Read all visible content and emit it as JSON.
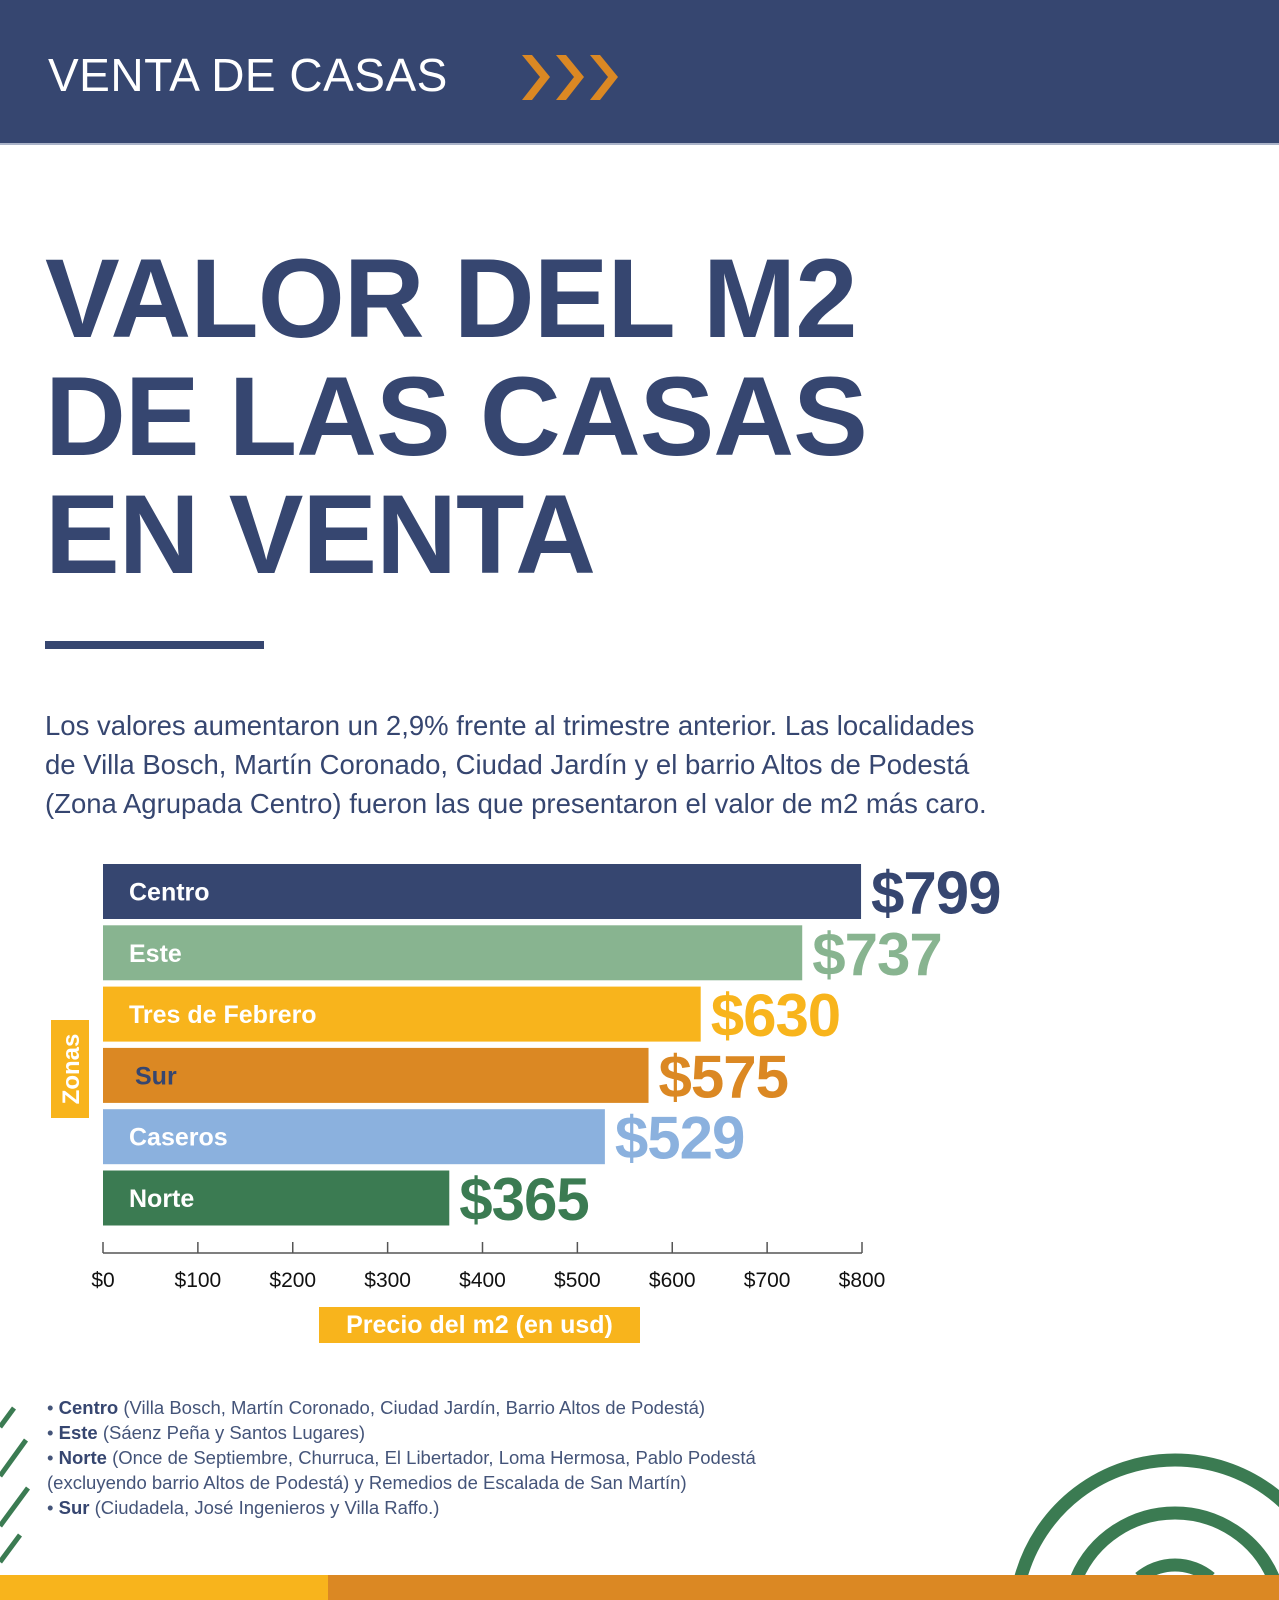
{
  "header": {
    "title": "VENTA DE CASAS",
    "icon": "triple-chevron-right"
  },
  "title_lines": [
    "VALOR DEL M2",
    "DE LAS CASAS",
    "EN VENTA"
  ],
  "intro_lines": [
    "Los valores aumentaron un 2,9% frente al trimestre anterior. Las localidades",
    "de Villa Bosch, Martín Coronado, Ciudad Jardín y el barrio Altos de Podestá",
    "(Zona Agrupada Centro) fueron las que presentaron el valor de m2 más caro."
  ],
  "chart_data": {
    "type": "bar",
    "orientation": "horizontal",
    "categories": [
      "Centro",
      "Este",
      "Tres de Febrero",
      "Sur",
      "Caseros",
      "Norte"
    ],
    "values": [
      799,
      737,
      630,
      575,
      529,
      365
    ],
    "value_labels": [
      "$799",
      "$737",
      "$630",
      "$575",
      "$529",
      "$365"
    ],
    "colors": [
      "#364670",
      "#88b490",
      "#f8b41c",
      "#db8823",
      "#8bb1de",
      "#3b7b52"
    ],
    "category_label_colors": [
      "#ffffff",
      "#ffffff",
      "#ffffff",
      "#364670",
      "#ffffff",
      "#ffffff"
    ],
    "xlabel": "Precio del m2 (en usd)",
    "ylabel": "Zonas",
    "xlim": [
      0,
      800
    ],
    "x_ticks": [
      0,
      100,
      200,
      300,
      400,
      500,
      600,
      700,
      800
    ],
    "x_tick_labels": [
      "$0",
      "$100",
      "$200",
      "$300",
      "$400",
      "$500",
      "$600",
      "$700",
      "$800"
    ],
    "grid": false,
    "label_box_color": "#f8b41c"
  },
  "notes": [
    {
      "bold": "Centro",
      "text": " (Villa Bosch, Martín Coronado, Ciudad Jardín, Barrio Altos de Podestá)"
    },
    {
      "bold": "Este",
      "text": " (Sáenz Peña y Santos Lugares)"
    },
    {
      "bold": "Norte",
      "text": " (Once de Septiembre, Churruca, El Libertador, Loma Hermosa, Pablo Podestá"
    },
    {
      "bold": "",
      "text": "(excluyendo barrio Altos de Podestá) y Remedios de Escalada de San Martín)"
    },
    {
      "bold": "Sur",
      "text": " (Ciudadela, José Ingenieros y Villa Raffo.)"
    }
  ],
  "colors": {
    "primary": "#364670",
    "yellow": "#f8b41c",
    "orange": "#db8823",
    "green": "#3b7b52"
  }
}
